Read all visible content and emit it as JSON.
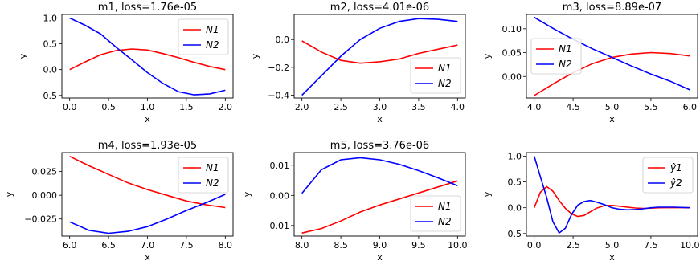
{
  "chart_data": [
    {
      "type": "line",
      "title": "m1, loss=1.76e-05",
      "xlabel": "x",
      "ylabel": "y",
      "xlim": [
        -0.1,
        2.1
      ],
      "ylim": [
        -0.55,
        1.07
      ],
      "xticks": [
        0.0,
        0.5,
        1.0,
        1.5,
        2.0
      ],
      "xtick_labels": [
        "0.0",
        "0.5",
        "1.0",
        "1.5",
        "2.0"
      ],
      "yticks": [
        -0.5,
        0.0,
        0.5,
        1.0
      ],
      "ytick_labels": [
        "−0.5",
        "0.0",
        "0.5",
        "1.0"
      ],
      "legend": "upper right",
      "series": [
        {
          "name": "N1",
          "color": "#ff0000",
          "x": [
            0.0,
            0.2,
            0.4,
            0.6,
            0.8,
            1.0,
            1.2,
            1.4,
            1.6,
            1.8,
            2.0
          ],
          "y": [
            0.0,
            0.15,
            0.29,
            0.37,
            0.4,
            0.38,
            0.31,
            0.23,
            0.14,
            0.06,
            0.0
          ]
        },
        {
          "name": "N2",
          "color": "#0000ff",
          "x": [
            0.0,
            0.2,
            0.4,
            0.6,
            0.8,
            1.0,
            1.2,
            1.4,
            1.6,
            1.8,
            2.0
          ],
          "y": [
            1.0,
            0.86,
            0.69,
            0.43,
            0.19,
            -0.06,
            -0.27,
            -0.43,
            -0.49,
            -0.47,
            -0.4
          ]
        }
      ]
    },
    {
      "type": "line",
      "title": "m2, loss=4.01e-06",
      "xlabel": "x",
      "ylabel": "y",
      "xlim": [
        1.9,
        4.1
      ],
      "ylim": [
        -0.42,
        0.18
      ],
      "xticks": [
        2.0,
        2.5,
        3.0,
        3.5,
        4.0
      ],
      "xtick_labels": [
        "2.0",
        "2.5",
        "3.0",
        "3.5",
        "4.0"
      ],
      "yticks": [
        -0.4,
        -0.2,
        0.0
      ],
      "ytick_labels": [
        "−0.4",
        "−0.2",
        "0.0"
      ],
      "legend": "lower right",
      "series": [
        {
          "name": "N1",
          "color": "#ff0000",
          "x": [
            2.0,
            2.25,
            2.5,
            2.75,
            3.0,
            3.25,
            3.5,
            3.75,
            4.0
          ],
          "y": [
            -0.01,
            -0.09,
            -0.15,
            -0.17,
            -0.16,
            -0.14,
            -0.1,
            -0.07,
            -0.04
          ]
        },
        {
          "name": "N2",
          "color": "#0000ff",
          "x": [
            2.0,
            2.25,
            2.5,
            2.75,
            3.0,
            3.25,
            3.5,
            3.75,
            4.0
          ],
          "y": [
            -0.4,
            -0.26,
            -0.12,
            0.0,
            0.08,
            0.13,
            0.15,
            0.145,
            0.13
          ]
        }
      ]
    },
    {
      "type": "line",
      "title": "m3, loss=8.89e-07",
      "xlabel": "x",
      "ylabel": "y",
      "xlim": [
        3.9,
        6.1
      ],
      "ylim": [
        -0.045,
        0.13
      ],
      "xticks": [
        4.0,
        4.5,
        5.0,
        5.5,
        6.0
      ],
      "xtick_labels": [
        "4.0",
        "4.5",
        "5.0",
        "5.5",
        "6.0"
      ],
      "yticks": [
        0.0,
        0.05,
        0.1
      ],
      "ytick_labels": [
        "0.00",
        "0.05",
        "0.10"
      ],
      "legend": "center left",
      "series": [
        {
          "name": "N1",
          "color": "#ff0000",
          "x": [
            4.0,
            4.25,
            4.5,
            4.75,
            5.0,
            5.25,
            5.5,
            5.75,
            6.0
          ],
          "y": [
            -0.04,
            -0.015,
            0.008,
            0.027,
            0.04,
            0.047,
            0.05,
            0.048,
            0.043
          ]
        },
        {
          "name": "N2",
          "color": "#0000ff",
          "x": [
            4.0,
            4.25,
            4.5,
            4.75,
            5.0,
            5.25,
            5.5,
            5.75,
            6.0
          ],
          "y": [
            0.124,
            0.1,
            0.078,
            0.058,
            0.04,
            0.022,
            0.005,
            -0.01,
            -0.028
          ]
        }
      ]
    },
    {
      "type": "line",
      "title": "m4, loss=1.93e-05",
      "xlabel": "x",
      "ylabel": "y",
      "xlim": [
        5.9,
        8.1
      ],
      "ylim": [
        -0.043,
        0.045
      ],
      "xticks": [
        6.0,
        6.5,
        7.0,
        7.5,
        8.0
      ],
      "xtick_labels": [
        "6.0",
        "6.5",
        "7.0",
        "7.5",
        "8.0"
      ],
      "yticks": [
        -0.025,
        0.0,
        0.025
      ],
      "ytick_labels": [
        "−0.025",
        "0.000",
        "0.025"
      ],
      "legend": "upper right",
      "series": [
        {
          "name": "N1",
          "color": "#ff0000",
          "x": [
            6.0,
            6.25,
            6.5,
            6.75,
            7.0,
            7.25,
            7.5,
            7.75,
            8.0
          ],
          "y": [
            0.041,
            0.031,
            0.022,
            0.013,
            0.006,
            0.0,
            -0.006,
            -0.01,
            -0.013
          ]
        },
        {
          "name": "N2",
          "color": "#0000ff",
          "x": [
            6.0,
            6.25,
            6.5,
            6.75,
            7.0,
            7.25,
            7.5,
            7.75,
            8.0
          ],
          "y": [
            -0.028,
            -0.037,
            -0.04,
            -0.038,
            -0.033,
            -0.025,
            -0.016,
            -0.008,
            0.001
          ]
        }
      ]
    },
    {
      "type": "line",
      "title": "m5, loss=3.76e-06",
      "xlabel": "x",
      "ylabel": "y",
      "xlim": [
        7.9,
        10.1
      ],
      "ylim": [
        -0.0135,
        0.0142
      ],
      "xticks": [
        8.0,
        8.5,
        9.0,
        9.5,
        10.0
      ],
      "xtick_labels": [
        "8.0",
        "8.5",
        "9.0",
        "9.5",
        "10.0"
      ],
      "yticks": [
        -0.01,
        0.0,
        0.01
      ],
      "ytick_labels": [
        "−0.01",
        "0.00",
        "0.01"
      ],
      "legend": "lower right",
      "series": [
        {
          "name": "N1",
          "color": "#ff0000",
          "x": [
            8.0,
            8.25,
            8.5,
            8.75,
            9.0,
            9.25,
            9.5,
            9.75,
            10.0
          ],
          "y": [
            -0.0125,
            -0.011,
            -0.0085,
            -0.0055,
            -0.0032,
            -0.0012,
            0.0008,
            0.0028,
            0.0048
          ]
        },
        {
          "name": "N2",
          "color": "#0000ff",
          "x": [
            8.0,
            8.25,
            8.5,
            8.75,
            9.0,
            9.25,
            9.5,
            9.75,
            10.0
          ],
          "y": [
            0.0007,
            0.0085,
            0.0118,
            0.0125,
            0.0118,
            0.0103,
            0.0082,
            0.0058,
            0.0032
          ]
        }
      ]
    },
    {
      "type": "line",
      "title": "",
      "xlabel": "x",
      "ylabel": "y",
      "xlim": [
        -0.5,
        10.5
      ],
      "ylim": [
        -0.55,
        1.07
      ],
      "xticks": [
        0.0,
        2.5,
        5.0,
        7.5,
        10.0
      ],
      "xtick_labels": [
        "0.0",
        "2.5",
        "5.0",
        "7.5",
        "10.0"
      ],
      "yticks": [
        -0.5,
        0.0,
        0.5,
        1.0
      ],
      "ytick_labels": [
        "−0.5",
        "0.0",
        "0.5",
        "1.0"
      ],
      "legend": "upper right",
      "series": [
        {
          "name": "ŷ1",
          "color": "#ff0000",
          "x": [
            0.0,
            0.4,
            0.8,
            1.2,
            1.6,
            2.0,
            2.4,
            2.8,
            3.2,
            3.6,
            4.0,
            4.5,
            5.0,
            5.5,
            6.0,
            6.5,
            7.0,
            7.5,
            8.0,
            9.0,
            10.0
          ],
          "y": [
            0.0,
            0.3,
            0.41,
            0.32,
            0.14,
            -0.01,
            -0.12,
            -0.17,
            -0.15,
            -0.08,
            -0.01,
            0.04,
            0.045,
            0.03,
            0.01,
            -0.005,
            -0.013,
            -0.008,
            0.0,
            0.005,
            0.0
          ]
        },
        {
          "name": "ŷ2",
          "color": "#0000ff",
          "x": [
            0.0,
            0.4,
            0.8,
            1.2,
            1.6,
            2.0,
            2.4,
            2.8,
            3.2,
            3.6,
            4.0,
            4.5,
            5.0,
            5.5,
            6.0,
            6.5,
            7.0,
            7.5,
            8.0,
            9.0,
            10.0
          ],
          "y": [
            1.0,
            0.6,
            0.2,
            -0.27,
            -0.49,
            -0.4,
            -0.13,
            0.05,
            0.12,
            0.14,
            0.11,
            0.06,
            0.0,
            -0.03,
            -0.04,
            -0.035,
            -0.02,
            0.0,
            0.01,
            0.01,
            0.0
          ]
        }
      ]
    }
  ]
}
